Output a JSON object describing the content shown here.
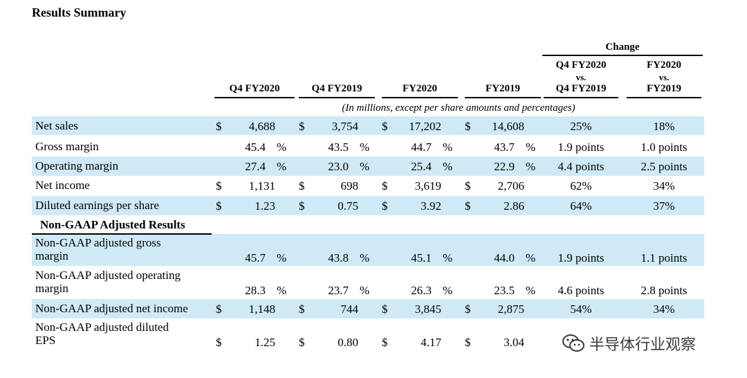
{
  "title": "Results Summary",
  "change_label": "Change",
  "columns": [
    {
      "key": "q4fy20",
      "label": "Q4 FY2020"
    },
    {
      "key": "q4fy19",
      "label": "Q4 FY2019"
    },
    {
      "key": "fy20",
      "label": "FY2020"
    },
    {
      "key": "fy19",
      "label": "FY2019"
    }
  ],
  "change_columns": [
    [
      "Q4 FY2020",
      "vs.",
      "Q4 FY2019"
    ],
    [
      "FY2020",
      "vs.",
      "FY2019"
    ]
  ],
  "subtitle": "(In millions, except per share amounts and percentages)",
  "section_title": "Non-GAAP Adjusted Results",
  "rows": [
    {
      "label": [
        "Net sales"
      ],
      "cur": [
        "$",
        "$",
        "$",
        "$"
      ],
      "vals": [
        "4,688",
        "3,754",
        "17,202",
        "14,608"
      ],
      "pct": [
        "",
        "",
        "",
        ""
      ],
      "chg": [
        "25%",
        "18%"
      ]
    },
    {
      "label": [
        "Gross margin"
      ],
      "cur": [
        "",
        "",
        "",
        ""
      ],
      "vals": [
        "45.4",
        "43.5",
        "44.7",
        "43.7"
      ],
      "pct": [
        "%",
        "%",
        "%",
        "%"
      ],
      "chg": [
        "1.9 points",
        "1.0 points"
      ]
    },
    {
      "label": [
        "Operating margin"
      ],
      "cur": [
        "",
        "",
        "",
        ""
      ],
      "vals": [
        "27.4",
        "23.0",
        "25.4",
        "22.9"
      ],
      "pct": [
        "%",
        "%",
        "%",
        "%"
      ],
      "chg": [
        "4.4 points",
        "2.5 points"
      ]
    },
    {
      "label": [
        "Net income"
      ],
      "cur": [
        "$",
        "$",
        "$",
        "$"
      ],
      "vals": [
        "1,131",
        "698",
        "3,619",
        "2,706"
      ],
      "pct": [
        "",
        "",
        "",
        ""
      ],
      "chg": [
        "62%",
        "34%"
      ]
    },
    {
      "label": [
        "Diluted earnings per share"
      ],
      "cur": [
        "$",
        "$",
        "$",
        "$"
      ],
      "vals": [
        "1.23",
        "0.75",
        "3.92",
        "2.86"
      ],
      "pct": [
        "",
        "",
        "",
        ""
      ],
      "chg": [
        "64%",
        "37%"
      ]
    },
    {
      "label": [
        "Non-GAAP adjusted gross",
        "margin"
      ],
      "cur": [
        "",
        "",
        "",
        ""
      ],
      "vals": [
        "45.7",
        "43.8",
        "45.1",
        "44.0"
      ],
      "pct": [
        "%",
        "%",
        "%",
        "%"
      ],
      "chg": [
        "1.9 points",
        "1.1 points"
      ]
    },
    {
      "label": [
        "Non-GAAP adjusted operating",
        "margin"
      ],
      "cur": [
        "",
        "",
        "",
        ""
      ],
      "vals": [
        "28.3",
        "23.7",
        "26.3",
        "23.5"
      ],
      "pct": [
        "%",
        "%",
        "%",
        "%"
      ],
      "chg": [
        "4.6 points",
        "2.8 points"
      ]
    },
    {
      "label": [
        "Non-GAAP adjusted net income"
      ],
      "cur": [
        "$",
        "$",
        "$",
        "$"
      ],
      "vals": [
        "1,148",
        "744",
        "3,845",
        "2,875"
      ],
      "pct": [
        "",
        "",
        "",
        ""
      ],
      "chg": [
        "54%",
        "34%"
      ]
    },
    {
      "label": [
        "Non-GAAP adjusted diluted",
        "EPS"
      ],
      "cur": [
        "$",
        "$",
        "$",
        "$"
      ],
      "vals": [
        "1.25",
        "0.80",
        "4.17",
        "3.04"
      ],
      "pct": [
        "",
        "",
        "",
        ""
      ],
      "chg": [
        "",
        ""
      ]
    }
  ],
  "watermark": "半导体行业观察",
  "watermark_icon": "wechat-icon",
  "colors": {
    "row_shade": "#cfeaf6"
  }
}
